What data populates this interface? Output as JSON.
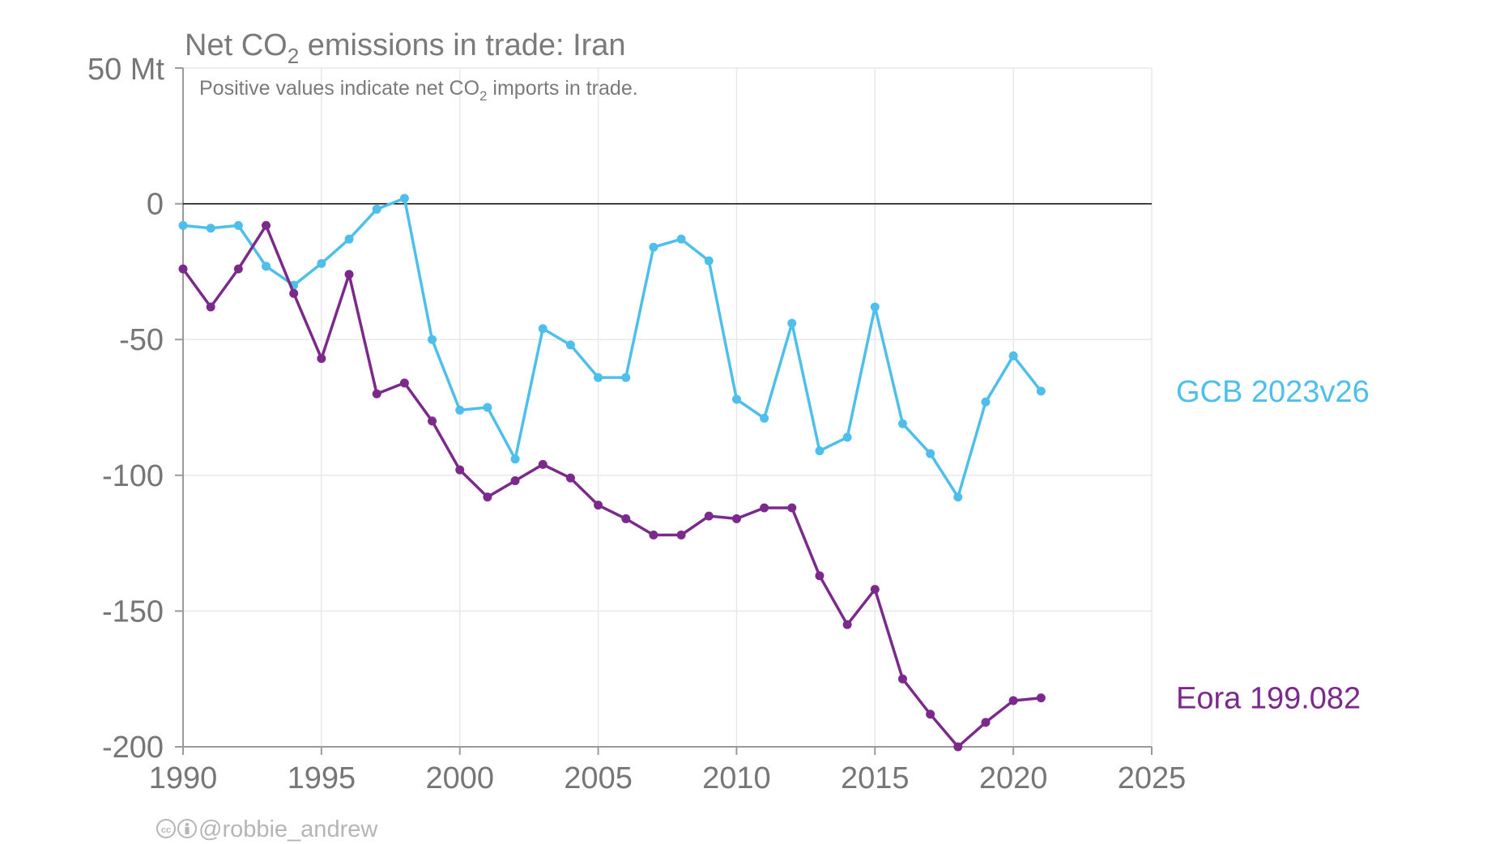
{
  "chart_data": {
    "type": "line",
    "title_parts": [
      "Net CO",
      "2",
      " emissions in trade: Iran"
    ],
    "note_parts": [
      "Positive values indicate net CO",
      "2",
      " imports in trade."
    ],
    "y_top_label": "50 Mt",
    "ylim": [
      -200,
      50
    ],
    "xlim": [
      1990,
      2025
    ],
    "y_ticks": [
      {
        "value": 0,
        "label": "0"
      },
      {
        "value": -50,
        "label": "-50"
      },
      {
        "value": -100,
        "label": "-100"
      },
      {
        "value": -150,
        "label": "-150"
      },
      {
        "value": -200,
        "label": "-200"
      }
    ],
    "x_ticks": [
      {
        "value": 1990,
        "label": "1990"
      },
      {
        "value": 1995,
        "label": "1995"
      },
      {
        "value": 2000,
        "label": "2000"
      },
      {
        "value": 2005,
        "label": "2005"
      },
      {
        "value": 2010,
        "label": "2010"
      },
      {
        "value": 2015,
        "label": "2015"
      },
      {
        "value": 2020,
        "label": "2020"
      },
      {
        "value": 2025,
        "label": "2025"
      }
    ],
    "grid": true,
    "zero_line": true,
    "legend": "direct labels at right end of series",
    "series": [
      {
        "name": "GCB 2023v26",
        "color": "#4dbfea",
        "x": [
          1990,
          1991,
          1992,
          1993,
          1994,
          1995,
          1996,
          1997,
          1998,
          1999,
          2000,
          2001,
          2002,
          2003,
          2004,
          2005,
          2006,
          2007,
          2008,
          2009,
          2010,
          2011,
          2012,
          2013,
          2014,
          2015,
          2016,
          2017,
          2018,
          2019,
          2020,
          2021
        ],
        "y": [
          -8,
          -9,
          -8,
          -23,
          -30,
          -22,
          -13,
          -2,
          2,
          -50,
          -76,
          -75,
          -94,
          -46,
          -52,
          -64,
          -64,
          -16,
          -13,
          -21,
          -72,
          -79,
          -44,
          -91,
          -86,
          -38,
          -81,
          -92,
          -108,
          -73,
          -56,
          -69
        ]
      },
      {
        "name": "Eora 199.082",
        "color": "#7b2a8c",
        "x": [
          1990,
          1991,
          1992,
          1993,
          1994,
          1995,
          1996,
          1997,
          1998,
          1999,
          2000,
          2001,
          2002,
          2003,
          2004,
          2005,
          2006,
          2007,
          2008,
          2009,
          2010,
          2011,
          2012,
          2013,
          2014,
          2015,
          2016,
          2017,
          2018,
          2019,
          2020,
          2021
        ],
        "y": [
          -24,
          -38,
          -24,
          -8,
          -33,
          -57,
          -26,
          -70,
          -66,
          -80,
          -98,
          -108,
          -102,
          -96,
          -101,
          -111,
          -116,
          -122,
          -122,
          -115,
          -116,
          -112,
          -112,
          -137,
          -155,
          -142,
          -175,
          -188,
          -200,
          -191,
          -183,
          -182
        ]
      }
    ]
  },
  "credit": {
    "icons": [
      "cc-icon",
      "by-icon"
    ],
    "handle": "@robbie_andrew"
  },
  "colors": {
    "text": "#7a7a7a",
    "grid": "#e8e8e8",
    "axis": "#9a9a9a",
    "zero_line": "#000000"
  }
}
